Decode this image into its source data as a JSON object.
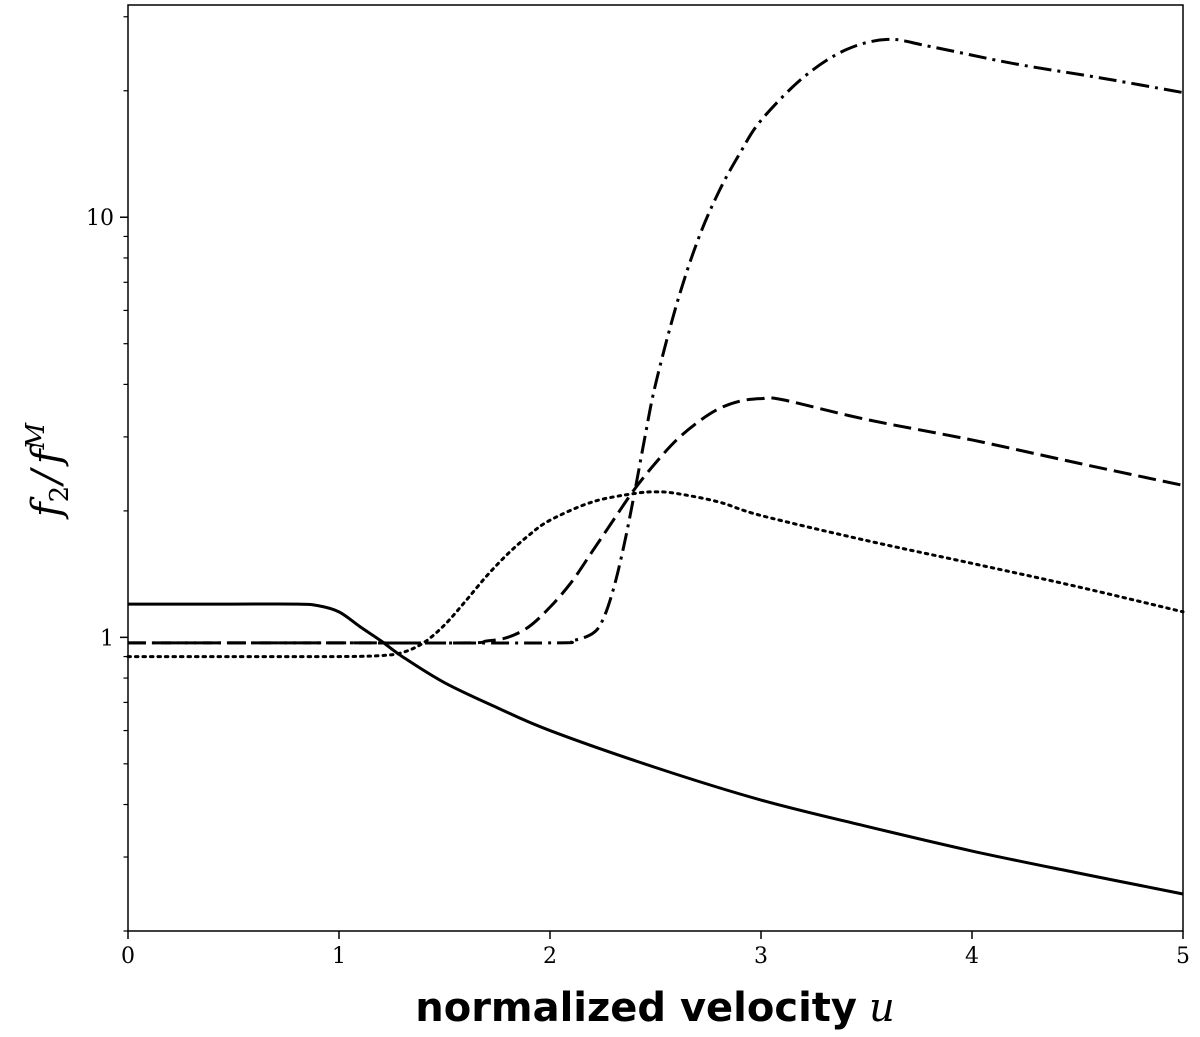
{
  "chart_data": {
    "type": "line",
    "title": "",
    "xlabel": {
      "text": "normalized velocity",
      "variable": "u"
    },
    "ylabel": {
      "base": "f",
      "sub": "2",
      "separator": "/",
      "base2": "f",
      "sup": "M"
    },
    "xlim": [
      0,
      5
    ],
    "ylim": [
      0.2,
      32
    ],
    "yscale": "log",
    "grid": false,
    "xticks": [
      0,
      1,
      2,
      3,
      4,
      5
    ],
    "xtick_labels": [
      "0",
      "1",
      "2",
      "3",
      "4",
      "5"
    ],
    "yticks": [
      1,
      10
    ],
    "ytick_labels": [
      "1",
      "10"
    ],
    "series": [
      {
        "name": "solid",
        "style": "solid",
        "x": [
          0,
          0.5,
          0.8,
          0.9,
          1.0,
          1.1,
          1.2,
          1.3,
          1.5,
          1.75,
          2.0,
          2.5,
          3.0,
          3.5,
          4.0,
          4.5,
          5.0
        ],
        "y": [
          1.2,
          1.2,
          1.2,
          1.19,
          1.15,
          1.06,
          0.98,
          0.9,
          0.78,
          0.68,
          0.6,
          0.49,
          0.41,
          0.355,
          0.31,
          0.275,
          0.245
        ]
      },
      {
        "name": "dotted",
        "style": "dotted",
        "x": [
          0,
          0.5,
          1.0,
          1.2,
          1.3,
          1.4,
          1.5,
          1.6,
          1.7,
          1.8,
          1.9,
          2.0,
          2.2,
          2.4,
          2.5,
          2.6,
          2.8,
          3.0,
          3.5,
          4.0,
          4.5,
          5.0
        ],
        "y": [
          0.9,
          0.9,
          0.9,
          0.905,
          0.92,
          0.97,
          1.07,
          1.22,
          1.4,
          1.58,
          1.75,
          1.9,
          2.1,
          2.2,
          2.22,
          2.2,
          2.1,
          1.95,
          1.7,
          1.5,
          1.32,
          1.15
        ]
      },
      {
        "name": "dashed",
        "style": "dashed",
        "x": [
          0,
          1.0,
          1.6,
          1.7,
          1.8,
          1.9,
          2.0,
          2.1,
          2.2,
          2.3,
          2.4,
          2.5,
          2.6,
          2.7,
          2.8,
          2.9,
          3.0,
          3.1,
          3.5,
          4.0,
          4.5,
          5.0
        ],
        "y": [
          0.97,
          0.97,
          0.97,
          0.98,
          1.0,
          1.06,
          1.18,
          1.35,
          1.6,
          1.9,
          2.25,
          2.6,
          2.95,
          3.25,
          3.5,
          3.65,
          3.7,
          3.68,
          3.3,
          2.95,
          2.6,
          2.3
        ]
      },
      {
        "name": "dash-dot",
        "style": "dashdot",
        "x": [
          0,
          1.0,
          2.0,
          2.1,
          2.2,
          2.25,
          2.3,
          2.35,
          2.4,
          2.45,
          2.5,
          2.6,
          2.7,
          2.8,
          2.9,
          3.0,
          3.2,
          3.4,
          3.6,
          3.8,
          4.2,
          4.6,
          5.0
        ],
        "y": [
          0.97,
          0.97,
          0.97,
          0.98,
          1.02,
          1.1,
          1.3,
          1.65,
          2.2,
          3.0,
          4.0,
          6.2,
          8.8,
          11.5,
          14.2,
          17.0,
          21.5,
          25.0,
          26.5,
          25.5,
          23.2,
          21.5,
          19.8
        ]
      }
    ]
  }
}
